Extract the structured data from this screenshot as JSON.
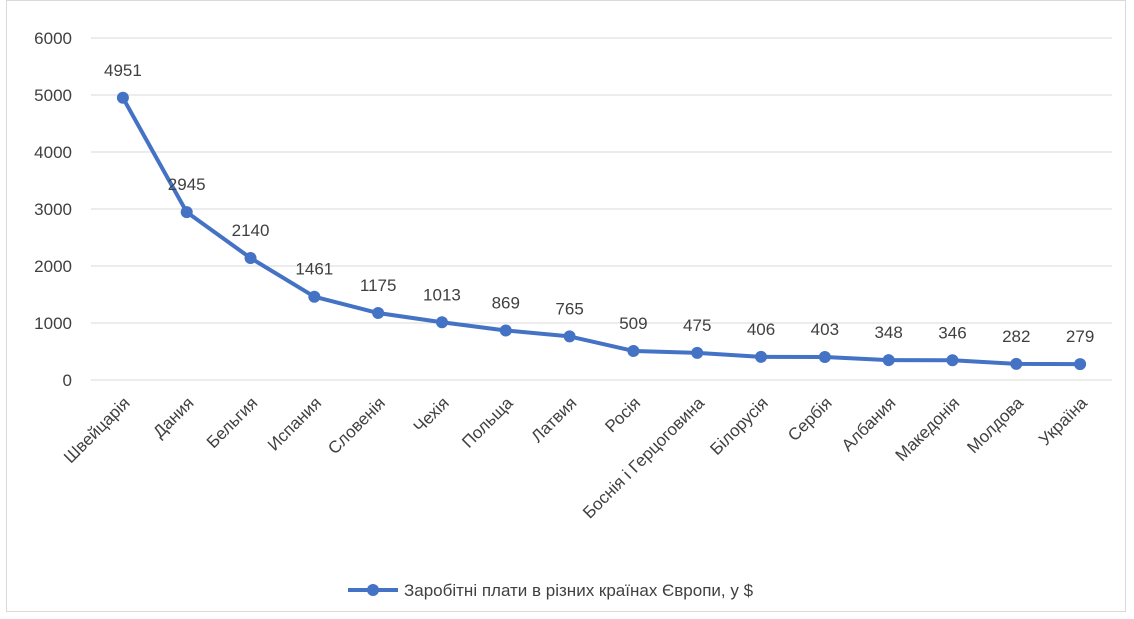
{
  "chart_data": {
    "type": "line",
    "title": "",
    "xlabel": "",
    "ylabel": "",
    "categories": [
      "Швейцарія",
      "Дания",
      "Бельгия",
      "Испания",
      "Словенія",
      "Чехія",
      "Польща",
      "Латвия",
      "Росія",
      "Боснія і Герцоговина",
      "Білорусія",
      "Сербія",
      "Албания",
      "Македонія",
      "Молдова",
      "Україна"
    ],
    "series": [
      {
        "name": "Заробітні плати в різних країнах Європи, у $",
        "values": [
          4951,
          2945,
          2140,
          1461,
          1175,
          1013,
          869,
          765,
          509,
          475,
          406,
          403,
          348,
          346,
          282,
          279
        ],
        "color": "#4472c4"
      }
    ],
    "ylim": [
      0,
      6000
    ],
    "yticks": [
      0,
      1000,
      2000,
      3000,
      4000,
      5000,
      6000
    ],
    "grid": true,
    "legend_position": "bottom",
    "data_labels": true
  }
}
